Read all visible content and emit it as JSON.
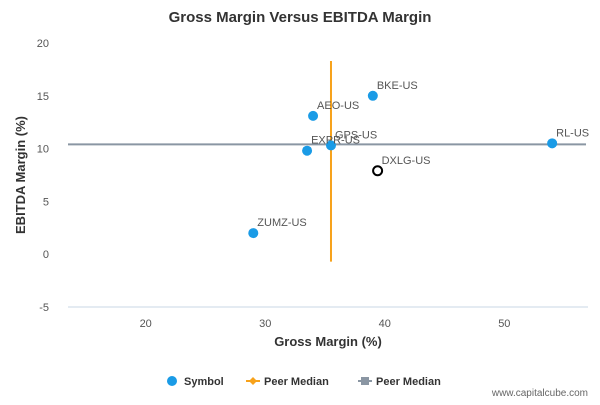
{
  "chart_data": {
    "type": "scatter",
    "title": "Gross Margin Versus EBITDA Margin",
    "xlabel": "Gross Margin (%)",
    "ylabel": "EBITDA Margin (%)",
    "xlim": [
      13.5,
      57
    ],
    "ylim": [
      -5,
      20
    ],
    "xticks": [
      20,
      30,
      40,
      50
    ],
    "yticks": [
      -5,
      0,
      5,
      10,
      15,
      20
    ],
    "grid": false,
    "points": [
      {
        "label": "BKE-US",
        "x": 39.0,
        "y": 15.0,
        "highlight": false
      },
      {
        "label": "AEO-US",
        "x": 34.0,
        "y": 13.1,
        "highlight": false
      },
      {
        "label": "GPS-US",
        "x": 35.5,
        "y": 10.3,
        "highlight": false
      },
      {
        "label": "EXPR-US",
        "x": 33.5,
        "y": 9.8,
        "highlight": false
      },
      {
        "label": "RL-US",
        "x": 54.0,
        "y": 10.5,
        "highlight": false
      },
      {
        "label": "DXLG-US",
        "x": 39.4,
        "y": 7.9,
        "highlight": true
      },
      {
        "label": "ZUMZ-US",
        "x": 29.0,
        "y": 2.0,
        "highlight": false
      }
    ],
    "peer_median_x": {
      "value": 35.5,
      "y_range": [
        -0.7,
        18.3
      ]
    },
    "peer_median_y": {
      "value": 10.4
    },
    "legend": {
      "position": "bottom",
      "items": [
        {
          "label": "Symbol",
          "kind": "dot"
        },
        {
          "label": "Peer Median",
          "kind": "vertical-line"
        },
        {
          "label": "Peer Median",
          "kind": "horizontal-line"
        }
      ]
    },
    "colors": {
      "point": "#1a9be6",
      "highlight_stroke": "#000000",
      "vertical_median": "#f7a21b",
      "horizontal_median": "#8a96a3",
      "axis": "#c9d7e6",
      "text": "#333333",
      "tick_text": "#555555"
    }
  },
  "footer": {
    "source": "www.capitalcube.com"
  }
}
